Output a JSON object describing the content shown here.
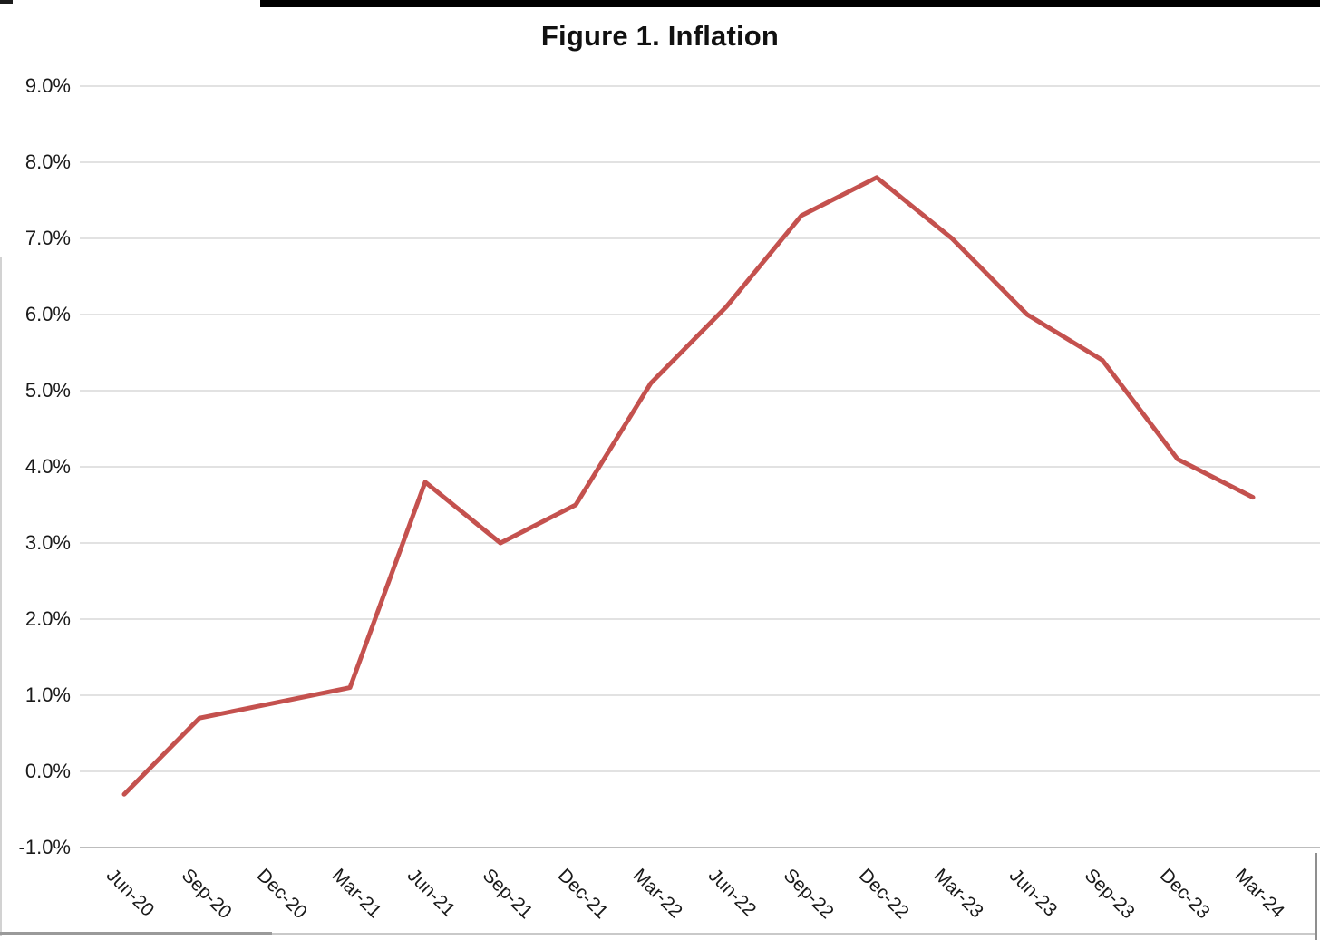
{
  "chart_data": {
    "type": "line",
    "title": "Figure 1. Inflation",
    "xlabel": "",
    "ylabel": "",
    "categories": [
      "Jun-20",
      "Sep-20",
      "Dec-20",
      "Mar-21",
      "Jun-21",
      "Sep-21",
      "Dec-21",
      "Mar-22",
      "Jun-22",
      "Sep-22",
      "Dec-22",
      "Mar-23",
      "Jun-23",
      "Sep-23",
      "Dec-23",
      "Mar-24"
    ],
    "series": [
      {
        "name": "Inflation",
        "values": [
          -0.3,
          0.7,
          0.9,
          1.1,
          3.8,
          3.0,
          3.5,
          5.1,
          6.1,
          7.3,
          7.8,
          7.0,
          6.0,
          5.4,
          4.1,
          3.6
        ],
        "color": "#c4514e"
      }
    ],
    "ylim": [
      -1,
      9
    ],
    "y_ticks": [
      {
        "value": 9,
        "label": "9.0%"
      },
      {
        "value": 8,
        "label": "8.0%"
      },
      {
        "value": 7,
        "label": "7.0%"
      },
      {
        "value": 6,
        "label": "6.0%"
      },
      {
        "value": 5,
        "label": "5.0%"
      },
      {
        "value": 4,
        "label": "4.0%"
      },
      {
        "value": 3,
        "label": "3.0%"
      },
      {
        "value": 2,
        "label": "2.0%"
      },
      {
        "value": 1,
        "label": "1.0%"
      },
      {
        "value": 0,
        "label": "0.0%"
      },
      {
        "value": -1,
        "label": "-1.0%"
      }
    ],
    "grid": true,
    "legend": "none",
    "colors": {
      "line": "#c4514e",
      "gridline": "#d8d8d8",
      "bottom_gridline": "#bdbdbd",
      "title_text": "#111111",
      "tick_text": "#1a1a1a"
    }
  }
}
